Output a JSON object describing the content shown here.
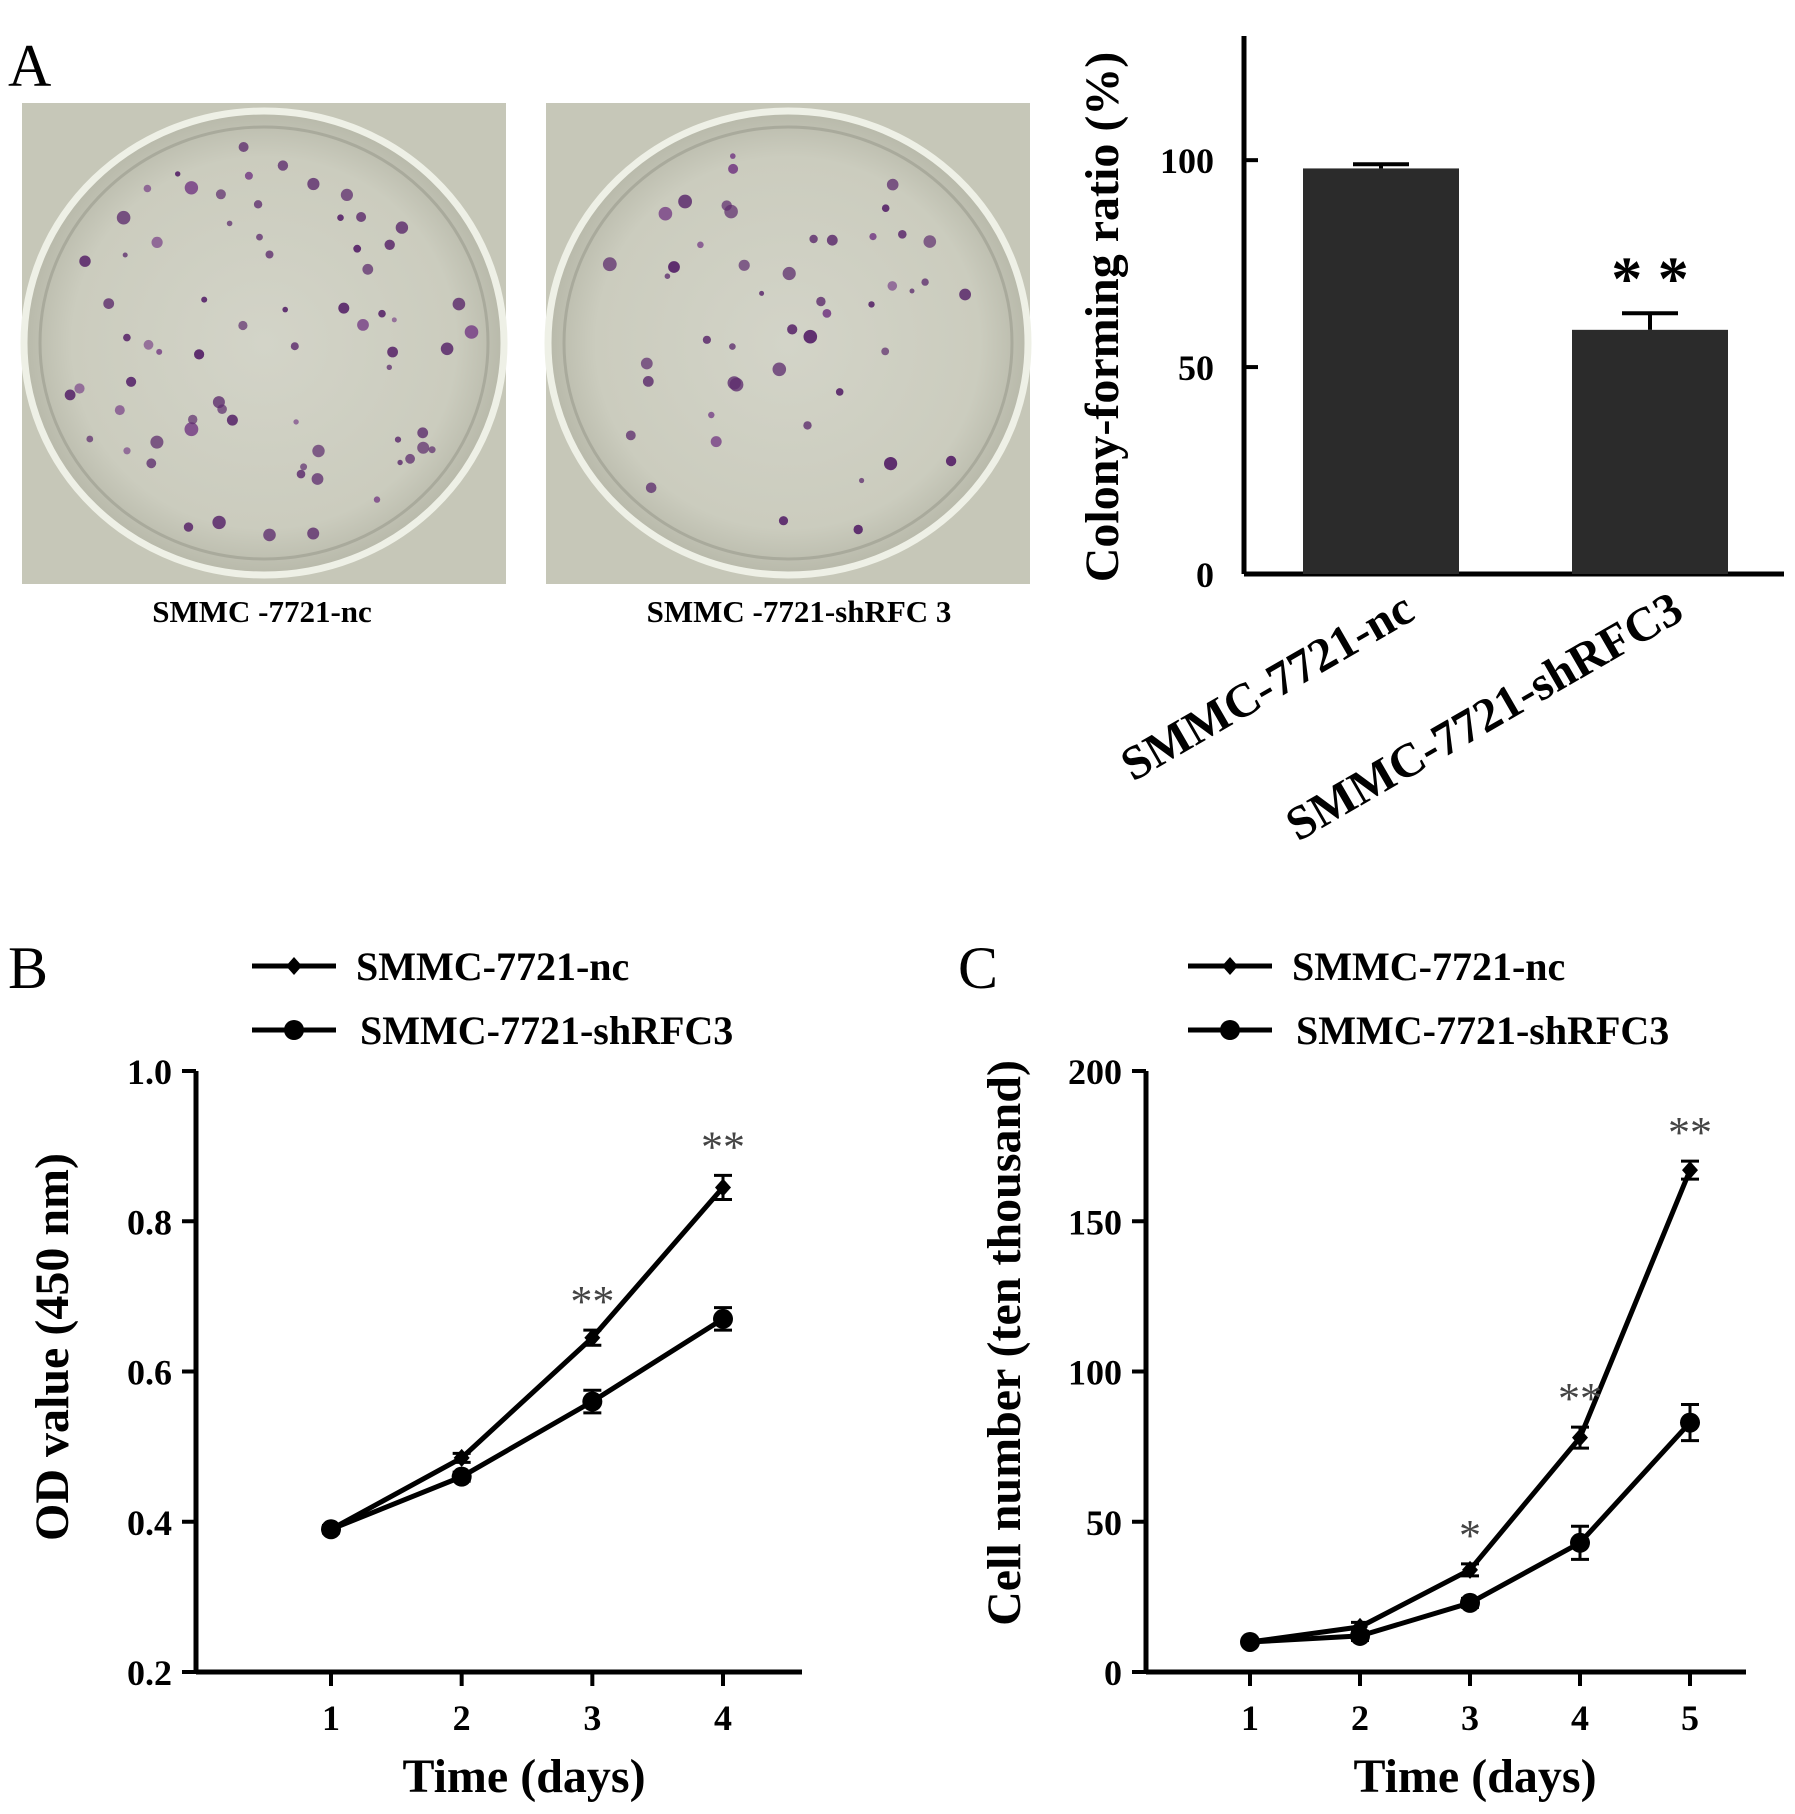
{
  "panels": {
    "a": {
      "letter": "A"
    },
    "b": {
      "letter": "B"
    },
    "c": {
      "letter": "C"
    }
  },
  "photos": {
    "left_caption": "SMMC -7721-nc",
    "right_caption": "SMMC -7721-shRFC 3"
  },
  "chart_data": [
    {
      "panel": "A",
      "type": "bar",
      "categories": [
        "SMMC-7721-nc",
        "SMMC-7721-shRFC3"
      ],
      "values": [
        98,
        59
      ],
      "errors": [
        1,
        4
      ],
      "ylabel": "Colony-forming ratio (%)",
      "ylim": [
        0,
        130
      ],
      "yticks": [
        "0",
        "50",
        "100"
      ],
      "annotations": [
        {
          "category": "SMMC-7721-shRFC3",
          "text": "* *"
        }
      ],
      "bar_color": "#2b2b2b",
      "grid": false
    },
    {
      "panel": "B",
      "type": "line",
      "x": [
        1,
        2,
        3,
        4
      ],
      "xticks": [
        "1",
        "2",
        "3",
        "4"
      ],
      "xlabel": "Time (days)",
      "ylabel": "OD value (450 nm)",
      "ylim": [
        0.2,
        1.0
      ],
      "yticks": [
        "0.2",
        "0.4",
        "0.6",
        "0.8",
        "1.0"
      ],
      "series": [
        {
          "name": "SMMC-7721-nc",
          "marker": "diamond",
          "values": [
            0.39,
            0.485,
            0.645,
            0.845
          ],
          "errors": [
            0.005,
            0.006,
            0.01,
            0.016
          ]
        },
        {
          "name": "SMMC-7721-shRFC3",
          "marker": "circle",
          "values": [
            0.39,
            0.46,
            0.56,
            0.67
          ],
          "errors": [
            0.005,
            0.006,
            0.015,
            0.015
          ]
        }
      ],
      "annotations": [
        {
          "x": 3,
          "text": "**"
        },
        {
          "x": 4,
          "text": "**"
        }
      ],
      "legend_position": "top-left",
      "grid": false
    },
    {
      "panel": "C",
      "type": "line",
      "x": [
        1,
        2,
        3,
        4,
        5
      ],
      "xticks": [
        "1",
        "2",
        "3",
        "4",
        "5"
      ],
      "xlabel": "Time (days)",
      "ylabel": "Cell  number (ten thousand)",
      "ylim": [
        0,
        200
      ],
      "yticks": [
        "0",
        "50",
        "100",
        "150",
        "200"
      ],
      "series": [
        {
          "name": "SMMC-7721-nc",
          "marker": "diamond",
          "values": [
            10,
            15,
            34,
            78,
            167
          ],
          "errors": [
            1,
            1.5,
            2,
            3.5,
            3
          ]
        },
        {
          "name": "SMMC-7721-shRFC3",
          "marker": "circle",
          "values": [
            10,
            12,
            23,
            43,
            83
          ],
          "errors": [
            1,
            1.5,
            1.5,
            5.5,
            6
          ]
        }
      ],
      "annotations": [
        {
          "x": 3,
          "text": "*"
        },
        {
          "x": 4,
          "text": "**"
        },
        {
          "x": 5,
          "text": "**"
        }
      ],
      "legend_position": "top-left",
      "grid": false
    }
  ]
}
